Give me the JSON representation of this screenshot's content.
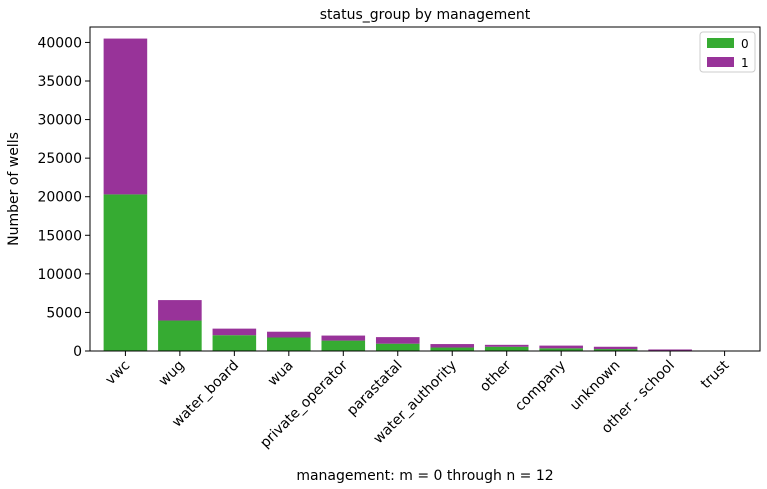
{
  "chart_data": {
    "type": "bar",
    "stacked": true,
    "title": "status_group by management",
    "xlabel": "management: m = 0 through n = 12",
    "ylabel": "Number of wells",
    "categories": [
      "vwc",
      "wug",
      "water_board",
      "wua",
      "private_operator",
      "parastatal",
      "water_authority",
      "other",
      "company",
      "unknown",
      "other - school",
      "trust"
    ],
    "series": [
      {
        "name": "0",
        "color": "#36ab32",
        "values": [
          20300,
          3950,
          2050,
          1750,
          1350,
          950,
          450,
          550,
          350,
          250,
          50,
          20
        ]
      },
      {
        "name": "1",
        "color": "#983399",
        "values": [
          20200,
          2650,
          850,
          750,
          650,
          850,
          450,
          250,
          350,
          300,
          150,
          10
        ]
      }
    ],
    "ylim": [
      0,
      42000
    ],
    "yticks": [
      0,
      5000,
      10000,
      15000,
      20000,
      25000,
      30000,
      35000,
      40000
    ],
    "grid": false,
    "legend_position": "top-right"
  }
}
